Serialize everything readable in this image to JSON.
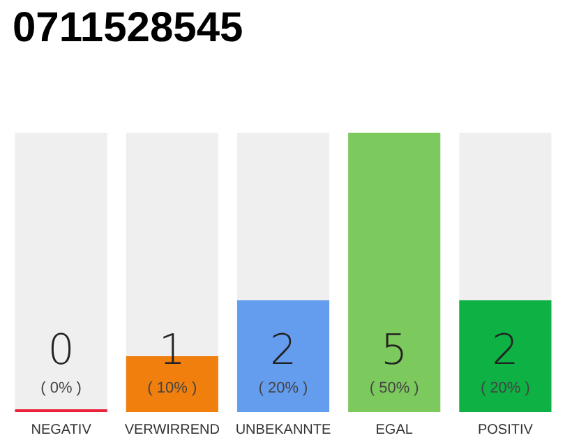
{
  "chart_data": {
    "type": "bar",
    "title": "0711528545",
    "categories": [
      "NEGATIV",
      "VERWIRREND",
      "UNBEKANNTE",
      "EGAL",
      "POSITIV"
    ],
    "values": [
      0,
      1,
      2,
      5,
      2
    ],
    "colors": [
      "#e8203a",
      "#f07f0e",
      "#649cee",
      "#7cc95d",
      "#0db144"
    ],
    "ylim": [
      0,
      5
    ],
    "tick_labels": "x",
    "value_labels": [
      "0\n( 0% )",
      "1\n( 10% )",
      "2\n( 20% )",
      "5\n( 50% )",
      "2\n( 20% )"
    ]
  }
}
